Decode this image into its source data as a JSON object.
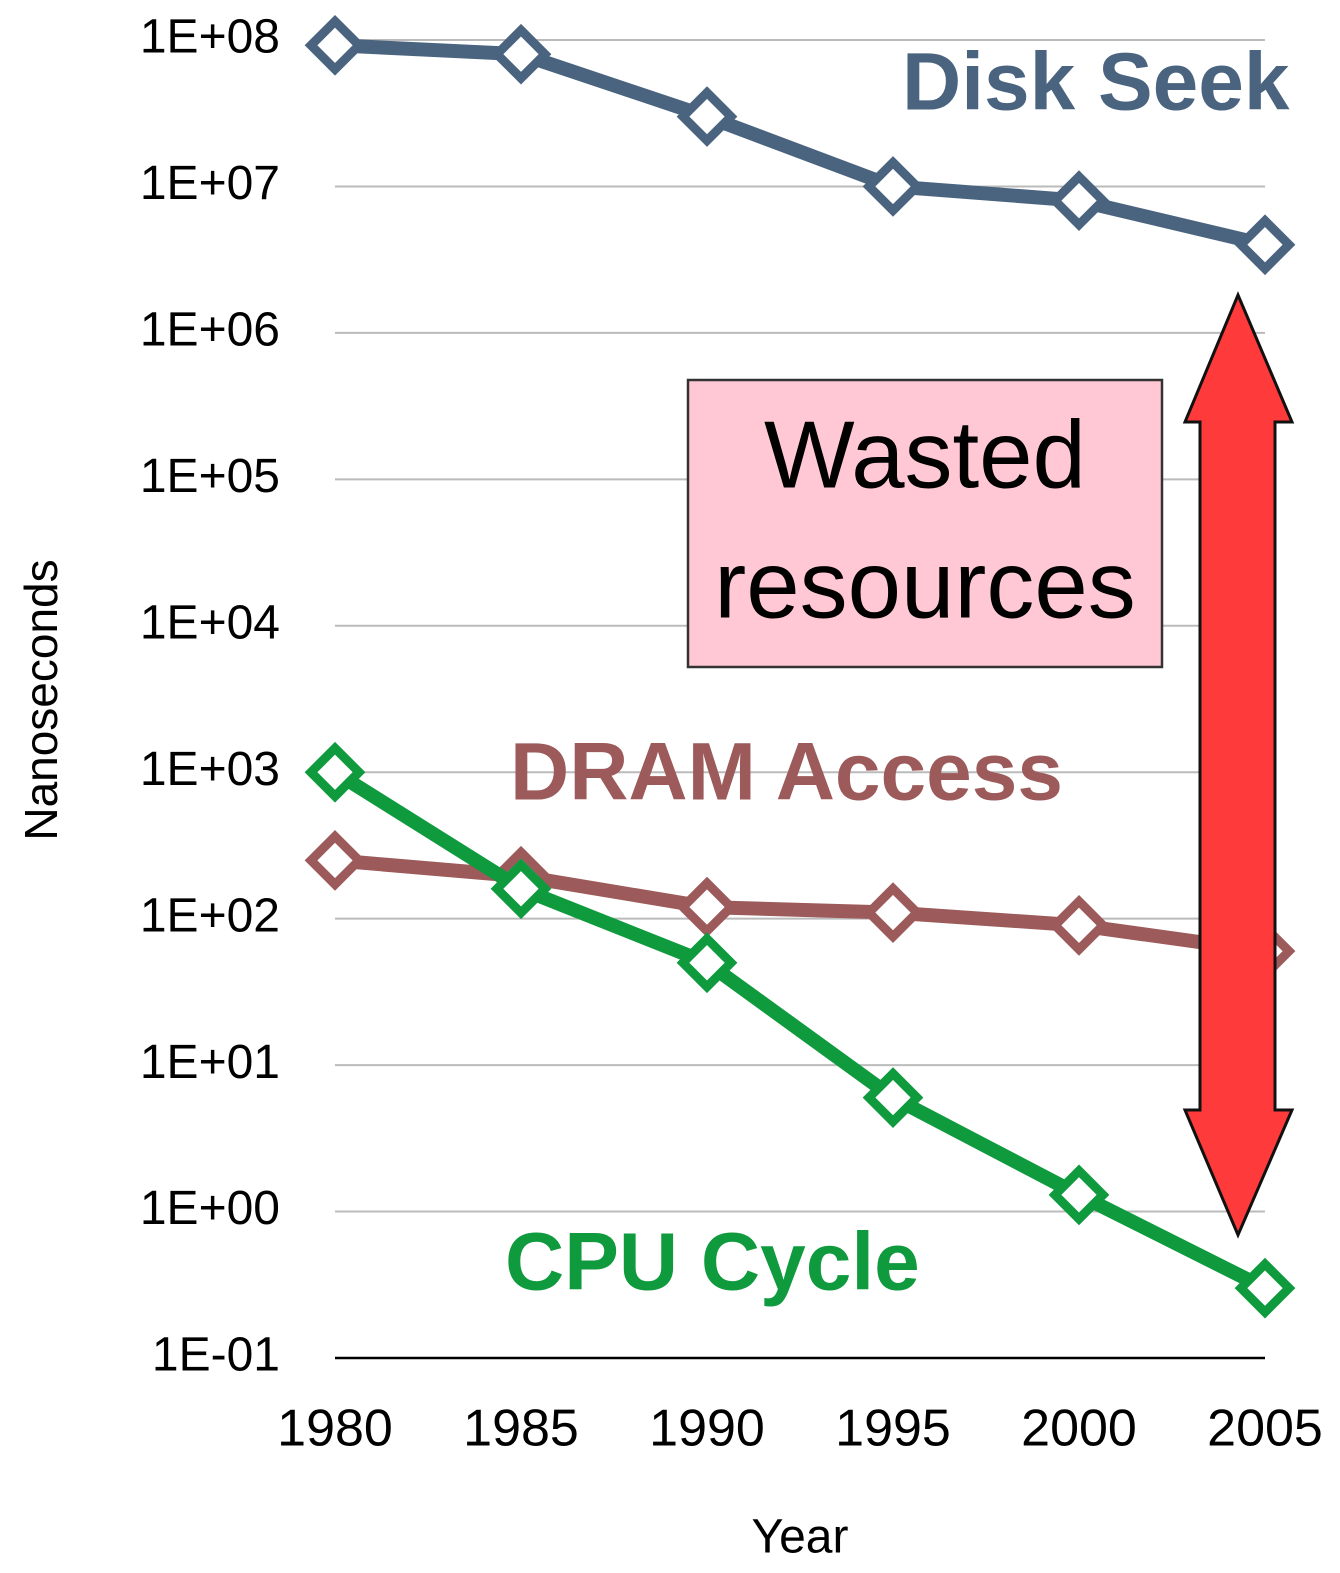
{
  "chart_data": {
    "type": "line",
    "x_label": "Year",
    "y_label": "Nanoseconds",
    "categories": [
      "1980",
      "1985",
      "1990",
      "1995",
      "2000",
      "2005"
    ],
    "log_scale": true,
    "grid": true,
    "ylim": [
      0.1,
      100000000
    ],
    "yticks": [
      {
        "value": 100000000,
        "label": "1E+08"
      },
      {
        "value": 10000000,
        "label": "1E+07"
      },
      {
        "value": 1000000,
        "label": "1E+06"
      },
      {
        "value": 100000,
        "label": "1E+05"
      },
      {
        "value": 10000,
        "label": "1E+04"
      },
      {
        "value": 1000,
        "label": "1E+03"
      },
      {
        "value": 100,
        "label": "1E+02"
      },
      {
        "value": 10,
        "label": "1E+01"
      },
      {
        "value": 1,
        "label": "1E+00"
      },
      {
        "value": 0.1,
        "label": "1E-01"
      }
    ],
    "series": [
      {
        "name": "Disk Seek",
        "color": "#4a6480",
        "values": [
          92000000,
          80000000,
          30000000,
          10000000,
          8000000,
          4000000
        ]
      },
      {
        "name": "DRAM Access",
        "color": "#9c5a5a",
        "values": [
          250,
          195,
          120,
          110,
          90,
          60
        ]
      },
      {
        "name": "CPU Cycle",
        "color": "#0e9a3d",
        "values": [
          1000,
          160,
          50,
          6,
          1.3,
          0.3
        ]
      }
    ],
    "annotation_lines": [
      "Wasted",
      "resources"
    ]
  }
}
